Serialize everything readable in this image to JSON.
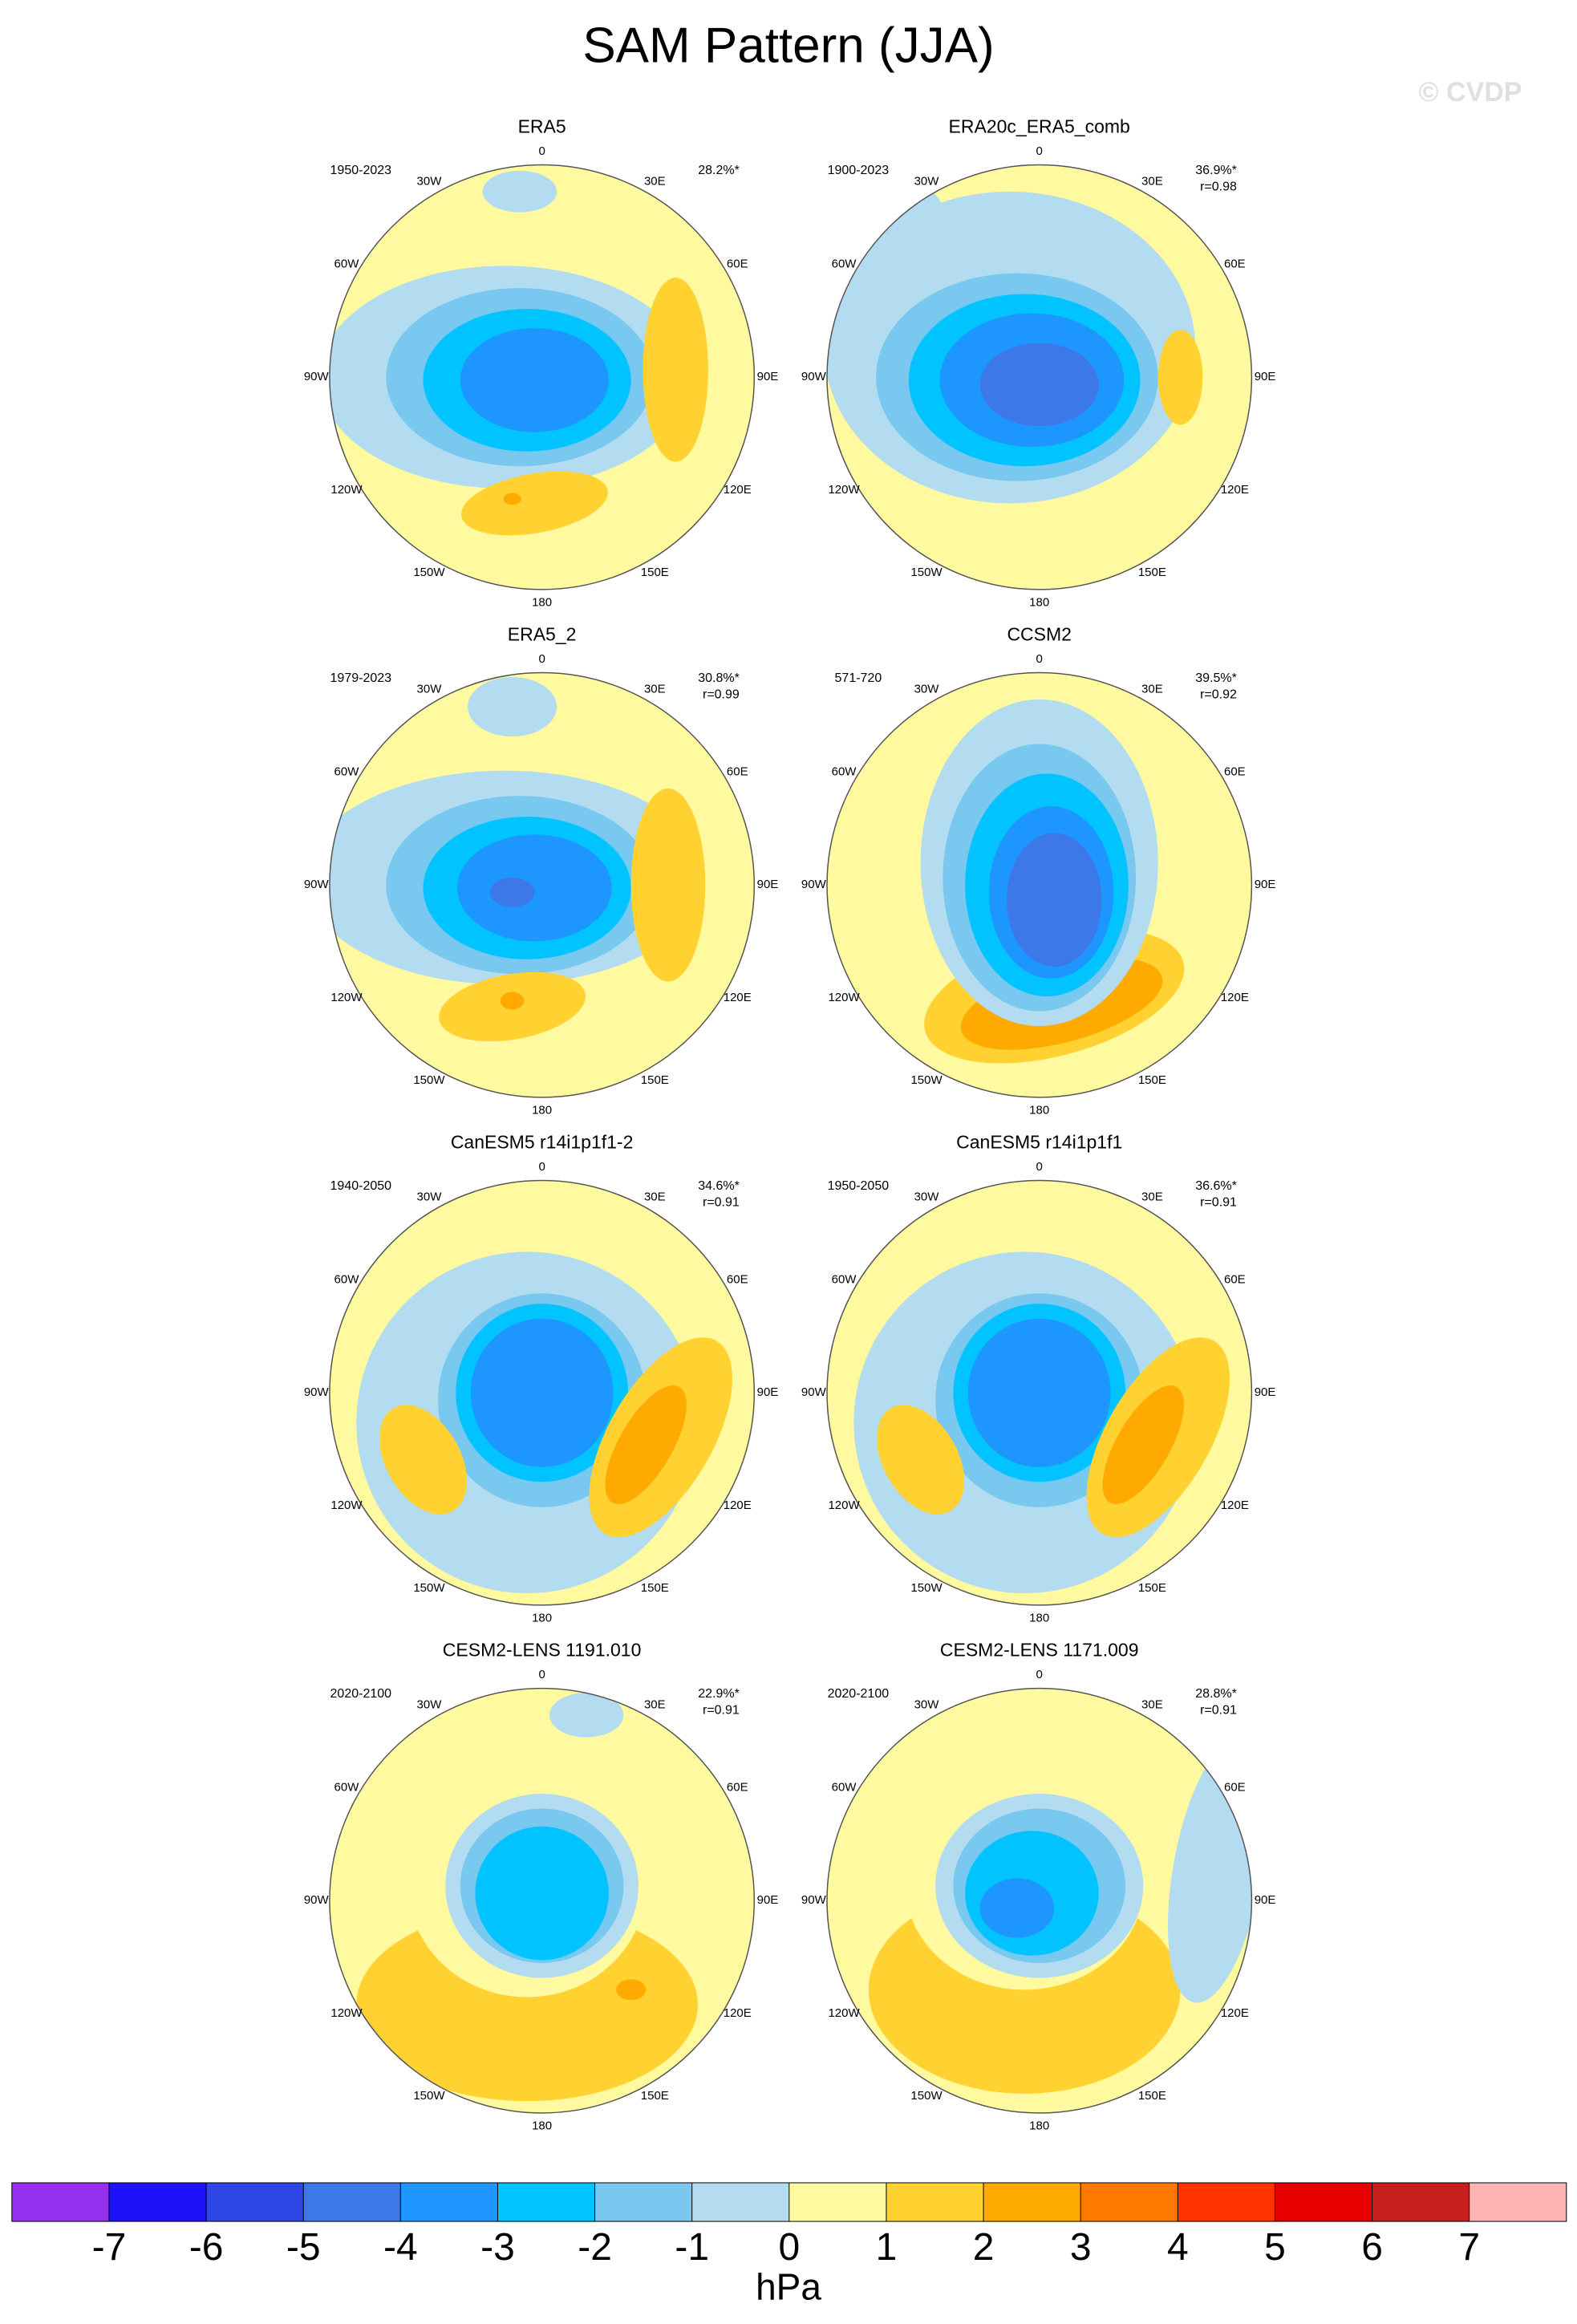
{
  "title": "SAM Pattern (JJA)",
  "watermark": "© CVDP",
  "longitude_labels": [
    "0",
    "30E",
    "60E",
    "90E",
    "120E",
    "150E",
    "180",
    "150W",
    "120W",
    "90W",
    "60W",
    "30W"
  ],
  "panels": [
    {
      "title": "ERA5",
      "period": "1950-2023",
      "pct": "28.2%*"
    },
    {
      "title": "ERA20c_ERA5_comb",
      "period": "1900-2023",
      "pct": "36.9%*",
      "r": "r=0.98"
    },
    {
      "title": "ERA5_2",
      "period": "1979-2023",
      "pct": "30.8%*",
      "r": "r=0.99"
    },
    {
      "title": "CCSM2",
      "period": "571-720",
      "pct": "39.5%*",
      "r": "r=0.92"
    },
    {
      "title": "CanESM5 r14i1p1f1-2",
      "period": "1940-2050",
      "pct": "34.6%*",
      "r": "r=0.91"
    },
    {
      "title": "CanESM5 r14i1p1f1",
      "period": "1950-2050",
      "pct": "36.6%*",
      "r": "r=0.91"
    },
    {
      "title": "CESM2-LENS 1191.010",
      "period": "2020-2100",
      "pct": "22.9%*",
      "r": "r=0.91"
    },
    {
      "title": "CESM2-LENS 1171.009",
      "period": "2020-2100",
      "pct": "28.8%*",
      "r": "r=0.91"
    }
  ],
  "colorbar": {
    "levels": [
      -7,
      -6,
      -5,
      -4,
      -3,
      -2,
      -1,
      0,
      1,
      2,
      3,
      4,
      5,
      6,
      7
    ],
    "colors": [
      "#9630f0",
      "#1e10f8",
      "#2f46e6",
      "#3c78e8",
      "#1e96ff",
      "#00c3ff",
      "#78c8f0",
      "#b4dcf0",
      "#fffaa0",
      "#ffd232",
      "#ffaa00",
      "#ff7800",
      "#ff3200",
      "#e60000",
      "#c81e1e",
      "#ffb4b4"
    ],
    "units": "hPa"
  }
}
